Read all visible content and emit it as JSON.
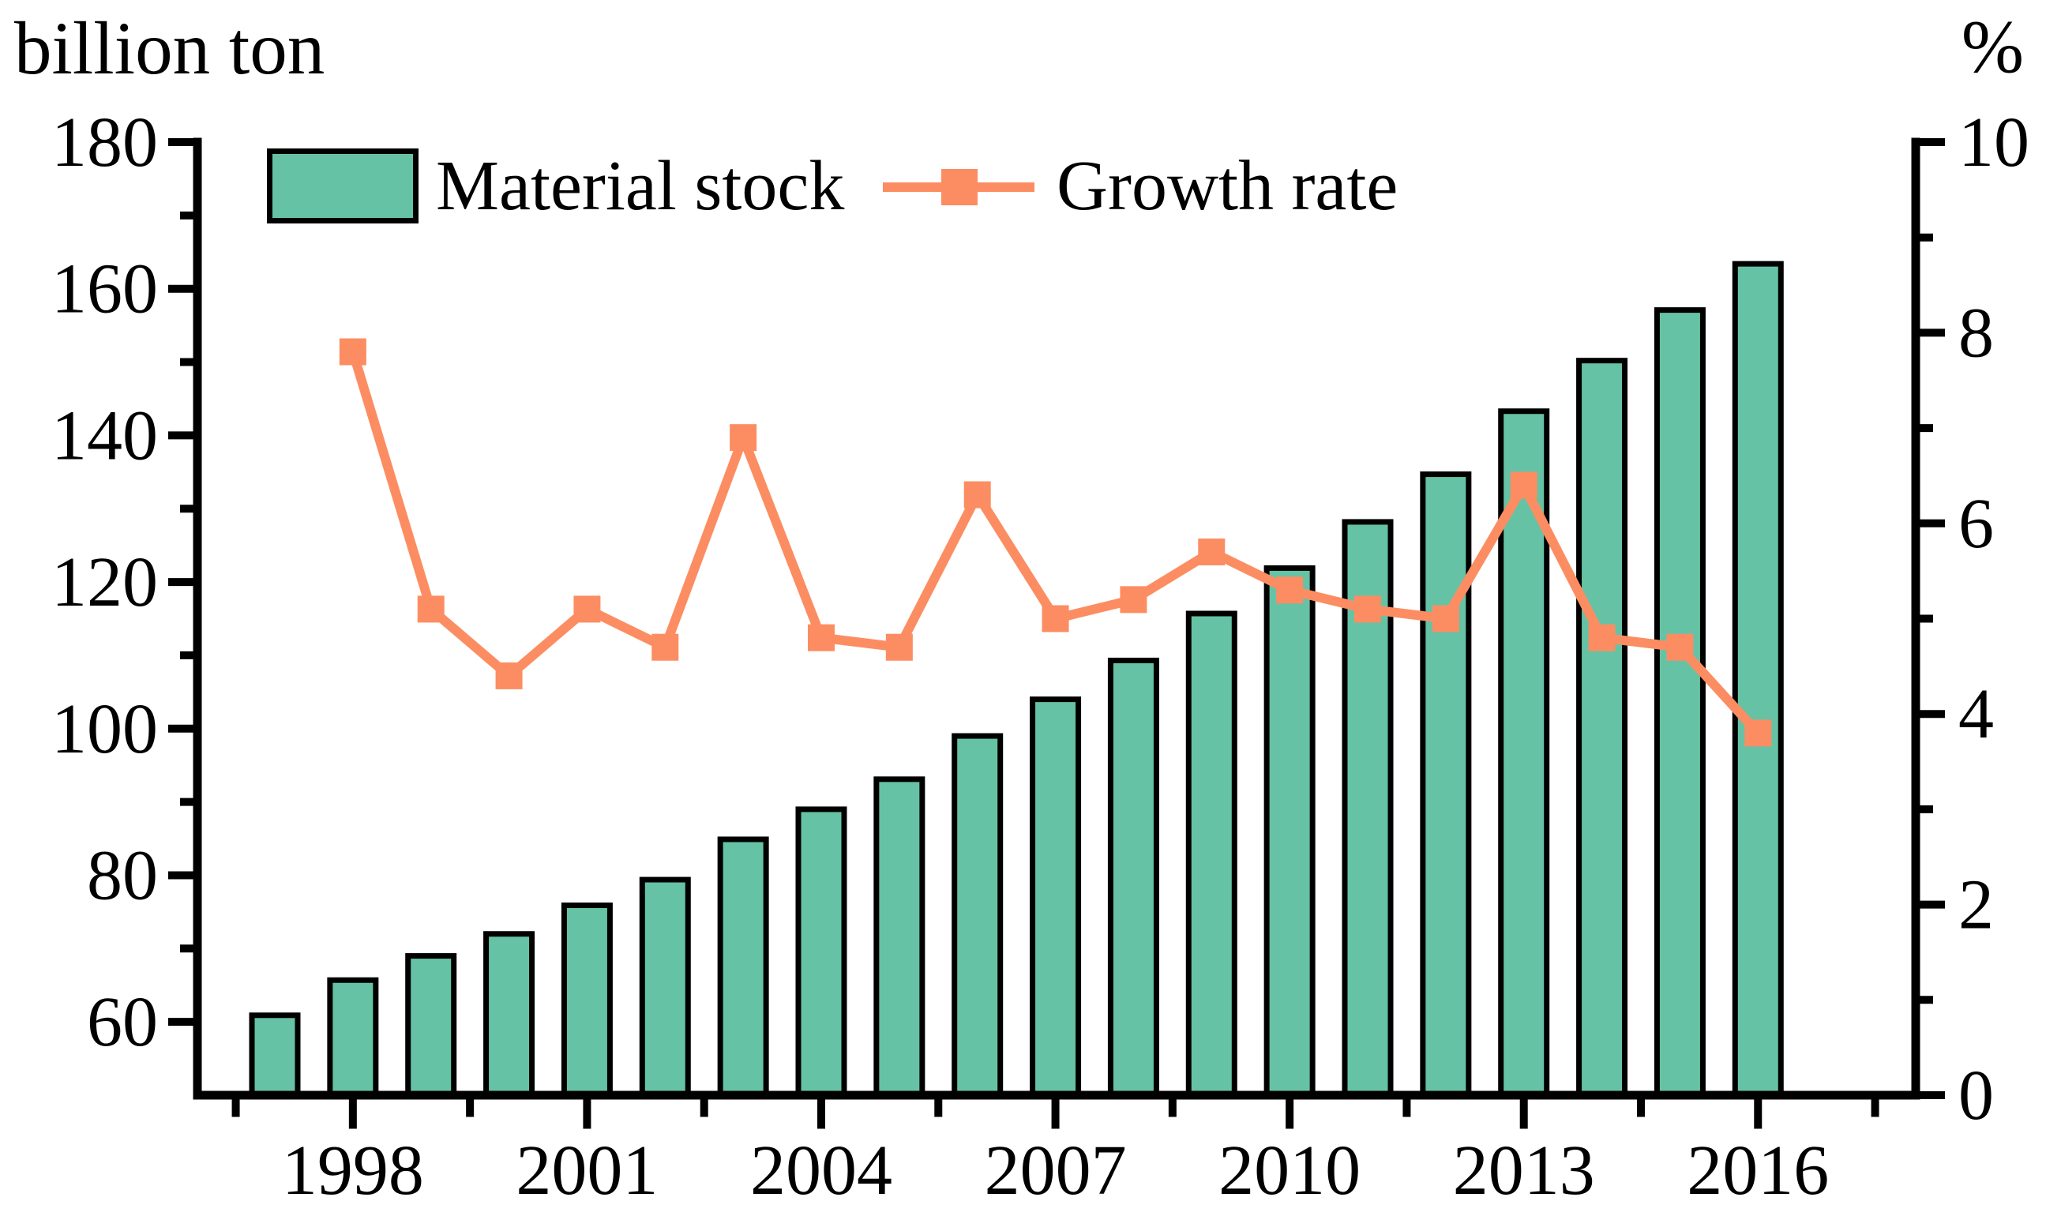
{
  "chart_data": {
    "type": "combo",
    "title": "",
    "left_axis": {
      "label": "billion ton",
      "min": 50,
      "max": 180,
      "major_ticks": [
        60,
        80,
        100,
        120,
        140,
        160,
        180
      ],
      "minor_ticks": [
        70,
        90,
        110,
        130,
        150,
        170
      ],
      "grid": false
    },
    "right_axis": {
      "label": "%",
      "min": 0,
      "max": 10,
      "major_ticks": [
        0,
        2,
        4,
        6,
        8,
        10
      ],
      "minor_ticks": [
        1,
        3,
        5,
        7,
        9
      ],
      "grid": false
    },
    "x_axis": {
      "labeled_years": [
        1998,
        2001,
        2004,
        2007,
        2010,
        2013,
        2016
      ],
      "minor_tick_years": [
        1996.5,
        1999.5,
        2002.5,
        2005.5,
        2008.5,
        2011.5,
        2014.5,
        2017.5
      ]
    },
    "legend": {
      "position": "top",
      "entries": [
        "Material stock",
        "Growth rate"
      ]
    },
    "series": [
      {
        "name": "Material stock",
        "type": "bar",
        "axis": "left",
        "unit": "billion ton",
        "color": "#66C2A5",
        "outline_color": "#000000",
        "years": [
          1997,
          1998,
          1999,
          2000,
          2001,
          2002,
          2003,
          2004,
          2005,
          2006,
          2007,
          2008,
          2009,
          2010,
          2011,
          2012,
          2013,
          2014,
          2015,
          2016
        ],
        "values": [
          60.9,
          65.7,
          69.0,
          72.0,
          75.9,
          79.4,
          84.9,
          89.0,
          93.1,
          99.0,
          104.0,
          109.3,
          115.7,
          121.9,
          128.2,
          134.7,
          143.3,
          150.2,
          157.1,
          163.4
        ]
      },
      {
        "name": "Growth rate",
        "type": "line",
        "axis": "right",
        "unit": "%",
        "color": "#FC8D62",
        "marker": "square",
        "years": [
          1998,
          1999,
          2000,
          2001,
          2002,
          2003,
          2004,
          2005,
          2006,
          2007,
          2008,
          2009,
          2010,
          2011,
          2012,
          2013,
          2014,
          2015,
          2016
        ],
        "values": [
          7.8,
          5.1,
          4.4,
          5.1,
          4.7,
          6.9,
          4.8,
          4.7,
          6.3,
          5.0,
          5.2,
          5.7,
          5.3,
          5.1,
          5.0,
          6.4,
          4.8,
          4.7,
          3.8
        ]
      }
    ],
    "colors": {
      "bar_fill": "#66C2A5",
      "line": "#FC8D62",
      "axis": "#000000",
      "background": "#FFFFFF"
    }
  }
}
